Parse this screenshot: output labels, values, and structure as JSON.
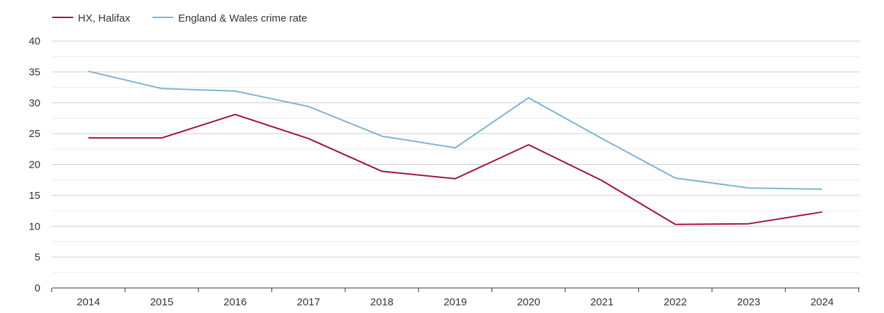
{
  "chart_data": {
    "type": "line",
    "title": "",
    "xlabel": "",
    "ylabel": "",
    "x": [
      "2014",
      "2015",
      "2016",
      "2017",
      "2018",
      "2019",
      "2020",
      "2021",
      "2022",
      "2023",
      "2024"
    ],
    "ylim": [
      0,
      40
    ],
    "yticks": [
      "0",
      "5",
      "10",
      "15",
      "20",
      "25",
      "30",
      "35",
      "40"
    ],
    "grid": true,
    "legend_position": "top-left",
    "series": [
      {
        "name": "HX, Halifax",
        "color": "#a10d35",
        "values": [
          24.3,
          24.3,
          28.1,
          24.2,
          18.9,
          17.7,
          23.2,
          17.4,
          10.3,
          10.4,
          12.3
        ]
      },
      {
        "name": "England & Wales crime rate",
        "color": "#7eb2d3",
        "values": [
          35.1,
          32.3,
          31.9,
          29.4,
          24.6,
          22.7,
          30.8,
          24.2,
          17.8,
          16.2,
          16.0
        ]
      }
    ]
  }
}
